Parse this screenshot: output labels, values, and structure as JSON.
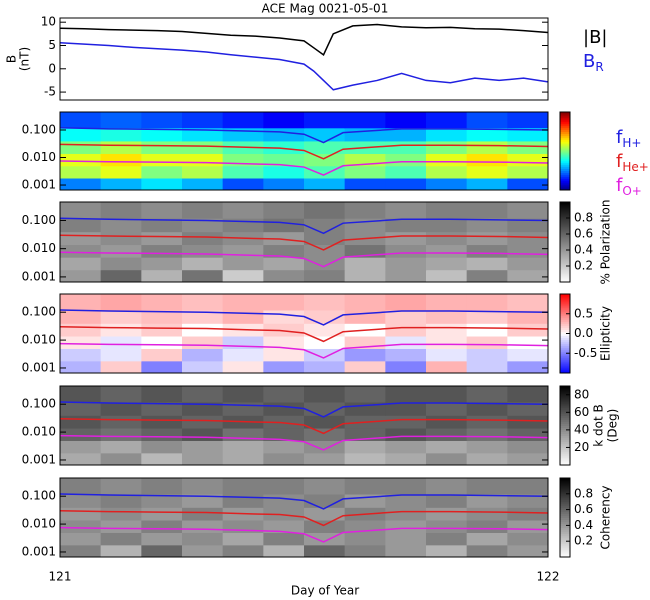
{
  "chart_data": [
    {
      "type": "line",
      "title": "ACE Mag 0021-05-01",
      "ylabel": [
        "B",
        "(nT)"
      ],
      "xlim": [
        121,
        122
      ],
      "ylim": [
        -6.7,
        10.9
      ],
      "yticks": [
        -5,
        0,
        5,
        10
      ],
      "x": [
        121,
        121.05,
        121.1,
        121.15,
        121.2,
        121.25,
        121.3,
        121.35,
        121.4,
        121.45,
        121.5,
        121.52,
        121.54,
        121.56,
        121.6,
        121.65,
        121.7,
        121.75,
        121.8,
        121.85,
        121.9,
        121.95,
        122
      ],
      "series": [
        {
          "name": "|B|",
          "color": "#000000",
          "values": [
            8.7,
            8.6,
            8.4,
            8.3,
            8.2,
            8.0,
            7.6,
            7.2,
            7.0,
            6.6,
            6.0,
            4.5,
            3.0,
            7.5,
            9.2,
            9.5,
            9.0,
            8.8,
            8.9,
            8.6,
            8.5,
            8.2,
            7.8
          ]
        },
        {
          "name": "B",
          "subscript": "R",
          "color": "#2020e0",
          "values": [
            5.6,
            5.3,
            5.0,
            4.6,
            4.3,
            4.0,
            3.6,
            3.0,
            2.5,
            2.0,
            1.0,
            -0.5,
            -2.5,
            -4.5,
            -3.5,
            -2.5,
            -1.0,
            -2.5,
            -3.0,
            -2.0,
            -2.5,
            -2.0,
            -2.8
          ]
        }
      ]
    },
    {
      "type": "heatmap",
      "ylog": true,
      "colormap": "jet",
      "clim": [
        0,
        1
      ],
      "xlim": [
        121,
        122
      ],
      "ylim": [
        0.00066,
        0.45
      ],
      "yticks": [
        0.001,
        {
          "value": 0.01,
          "label": "0.010"
        },
        {
          "value": 0.1,
          "label": "0.100"
        }
      ],
      "xbins": [
        121,
        121.0833,
        121.1667,
        121.25,
        121.3333,
        121.4167,
        121.5,
        121.5833,
        121.6667,
        121.75,
        121.8333,
        121.9167,
        122
      ],
      "ybins": [
        0.00066,
        0.0018,
        0.005,
        0.014,
        0.04,
        0.12,
        0.45
      ],
      "z": [
        [
          0.25,
          0.3,
          0.35,
          0.3,
          0.2,
          0.25,
          0.3,
          0.2,
          0.2,
          0.25,
          0.3,
          0.2
        ],
        [
          0.55,
          0.6,
          0.5,
          0.55,
          0.45,
          0.4,
          0.45,
          0.5,
          0.45,
          0.55,
          0.6,
          0.55
        ],
        [
          0.6,
          0.65,
          0.6,
          0.6,
          0.5,
          0.48,
          0.5,
          0.55,
          0.5,
          0.6,
          0.65,
          0.6
        ],
        [
          0.5,
          0.55,
          0.5,
          0.5,
          0.45,
          0.42,
          0.45,
          0.45,
          0.45,
          0.5,
          0.55,
          0.5
        ],
        [
          0.38,
          0.4,
          0.38,
          0.35,
          0.32,
          0.3,
          0.32,
          0.3,
          0.3,
          0.35,
          0.38,
          0.36
        ],
        [
          0.2,
          0.22,
          0.2,
          0.18,
          0.15,
          0.12,
          0.15,
          0.15,
          0.12,
          0.15,
          0.2,
          0.18
        ]
      ],
      "x": [
        121,
        121.1,
        121.2,
        121.3,
        121.4,
        121.45,
        121.5,
        121.54,
        121.58,
        121.7,
        121.8,
        121.9,
        122
      ],
      "series": [
        {
          "name": "f",
          "subscript": "H+",
          "color": "#2020e0",
          "values": [
            0.12,
            0.11,
            0.105,
            0.1,
            0.09,
            0.085,
            0.07,
            0.035,
            0.08,
            0.11,
            0.11,
            0.105,
            0.1
          ]
        },
        {
          "name": "f",
          "subscript": "He+",
          "color": "#e02020",
          "values": [
            0.03,
            0.028,
            0.027,
            0.026,
            0.023,
            0.022,
            0.018,
            0.009,
            0.02,
            0.028,
            0.028,
            0.027,
            0.025
          ]
        },
        {
          "name": "f",
          "subscript": "O+",
          "color": "#e020e0",
          "values": [
            0.0075,
            0.007,
            0.0068,
            0.0065,
            0.0058,
            0.0055,
            0.0045,
            0.0023,
            0.005,
            0.007,
            0.007,
            0.0068,
            0.0063
          ]
        }
      ]
    },
    {
      "type": "heatmap",
      "ylog": true,
      "colormap": "gray_r",
      "clim": [
        0,
        1
      ],
      "cbticks": [
        0.2,
        0.4,
        0.6,
        0.8
      ],
      "cblabel": [
        "% Polarization"
      ],
      "xlim": [
        121,
        122
      ],
      "ylim": [
        0.00066,
        0.45
      ],
      "yticks": [
        0.001,
        {
          "value": 0.01,
          "label": "0.010"
        },
        {
          "value": 0.1,
          "label": "0.100"
        }
      ],
      "xbins": [
        121,
        121.0833,
        121.1667,
        121.25,
        121.3333,
        121.4167,
        121.5,
        121.5833,
        121.6667,
        121.75,
        121.8333,
        121.9167,
        122
      ],
      "ybins": [
        0.00066,
        0.0018,
        0.005,
        0.014,
        0.04,
        0.12,
        0.45
      ],
      "z": [
        [
          0.4,
          0.6,
          0.3,
          0.55,
          0.2,
          0.45,
          0.5,
          0.3,
          0.4,
          0.25,
          0.5,
          0.35
        ],
        [
          0.35,
          0.45,
          0.4,
          0.3,
          0.4,
          0.35,
          0.45,
          0.3,
          0.4,
          0.35,
          0.3,
          0.4
        ],
        [
          0.45,
          0.4,
          0.5,
          0.45,
          0.4,
          0.5,
          0.45,
          0.55,
          0.45,
          0.4,
          0.5,
          0.45
        ],
        [
          0.4,
          0.45,
          0.4,
          0.5,
          0.45,
          0.4,
          0.5,
          0.45,
          0.4,
          0.45,
          0.4,
          0.45
        ],
        [
          0.5,
          0.45,
          0.5,
          0.45,
          0.5,
          0.55,
          0.5,
          0.45,
          0.5,
          0.5,
          0.45,
          0.5
        ],
        [
          0.45,
          0.5,
          0.45,
          0.5,
          0.45,
          0.5,
          0.55,
          0.5,
          0.45,
          0.5,
          0.5,
          0.45
        ]
      ],
      "x": [
        121,
        121.1,
        121.2,
        121.3,
        121.4,
        121.45,
        121.5,
        121.54,
        121.58,
        121.7,
        121.8,
        121.9,
        122
      ],
      "series": [
        {
          "color": "#2020e0",
          "values": [
            0.12,
            0.11,
            0.105,
            0.1,
            0.09,
            0.085,
            0.07,
            0.035,
            0.08,
            0.11,
            0.11,
            0.105,
            0.1
          ]
        },
        {
          "color": "#e02020",
          "values": [
            0.03,
            0.028,
            0.027,
            0.026,
            0.023,
            0.022,
            0.018,
            0.009,
            0.02,
            0.028,
            0.028,
            0.027,
            0.025
          ]
        },
        {
          "color": "#e020e0",
          "values": [
            0.0075,
            0.007,
            0.0068,
            0.0065,
            0.0058,
            0.0055,
            0.0045,
            0.0023,
            0.005,
            0.007,
            0.007,
            0.0068,
            0.0063
          ]
        }
      ]
    },
    {
      "type": "heatmap",
      "ylog": true,
      "colormap": "bwr",
      "clim": [
        -1,
        1
      ],
      "cbticks": [
        -0.5,
        {
          "value": 0,
          "label": "0.0"
        },
        0.5
      ],
      "cblabel": [
        "Ellipticity"
      ],
      "xlim": [
        121,
        122
      ],
      "ylim": [
        0.00066,
        0.45
      ],
      "yticks": [
        0.001,
        {
          "value": 0.01,
          "label": "0.010"
        },
        {
          "value": 0.1,
          "label": "0.100"
        }
      ],
      "xbins": [
        121,
        121.0833,
        121.1667,
        121.25,
        121.3333,
        121.4167,
        121.5,
        121.5833,
        121.6667,
        121.75,
        121.8333,
        121.9167,
        122
      ],
      "ybins": [
        0.00066,
        0.0018,
        0.005,
        0.014,
        0.04,
        0.12,
        0.45
      ],
      "z": [
        [
          -0.3,
          0.2,
          -0.5,
          -0.2,
          0.1,
          -0.4,
          -0.3,
          0.2,
          -0.5,
          0.3,
          -0.2,
          -0.4
        ],
        [
          -0.2,
          -0.1,
          0.2,
          -0.3,
          -0.1,
          0.1,
          -0.2,
          -0.4,
          -0.3,
          -0.1,
          -0.2,
          -0.1
        ],
        [
          0.1,
          -0.1,
          0.0,
          0.2,
          -0.2,
          0.1,
          0.0,
          0.2,
          -0.1,
          0.1,
          0.2,
          0.0
        ],
        [
          0.2,
          0.1,
          0.2,
          0.0,
          0.1,
          0.2,
          0.1,
          0.0,
          0.2,
          0.1,
          0.0,
          0.2
        ],
        [
          0.3,
          0.2,
          0.25,
          0.2,
          0.3,
          0.15,
          0.2,
          0.3,
          0.2,
          0.25,
          0.2,
          0.3
        ],
        [
          0.3,
          0.35,
          0.3,
          0.25,
          0.3,
          0.3,
          0.25,
          0.3,
          0.35,
          0.3,
          0.3,
          0.25
        ]
      ],
      "x": [
        121,
        121.1,
        121.2,
        121.3,
        121.4,
        121.45,
        121.5,
        121.54,
        121.58,
        121.7,
        121.8,
        121.9,
        122
      ],
      "series": [
        {
          "color": "#2020e0",
          "values": [
            0.12,
            0.11,
            0.105,
            0.1,
            0.09,
            0.085,
            0.07,
            0.035,
            0.08,
            0.11,
            0.11,
            0.105,
            0.1
          ]
        },
        {
          "color": "#e02020",
          "values": [
            0.03,
            0.028,
            0.027,
            0.026,
            0.023,
            0.022,
            0.018,
            0.009,
            0.02,
            0.028,
            0.028,
            0.027,
            0.025
          ]
        },
        {
          "color": "#e020e0",
          "values": [
            0.0075,
            0.007,
            0.0068,
            0.0065,
            0.0058,
            0.0055,
            0.0045,
            0.0023,
            0.005,
            0.007,
            0.007,
            0.0068,
            0.0063
          ]
        }
      ]
    },
    {
      "type": "heatmap",
      "ylog": true,
      "colormap": "gray_r",
      "clim": [
        0,
        90
      ],
      "cbticks": [
        20,
        40,
        60,
        80
      ],
      "cblabel": [
        "k dot B",
        "(Deg)"
      ],
      "xlim": [
        121,
        122
      ],
      "ylim": [
        0.00066,
        0.45
      ],
      "yticks": [
        0.001,
        {
          "value": 0.01,
          "label": "0.010"
        },
        {
          "value": 0.1,
          "label": "0.100"
        }
      ],
      "xbins": [
        121,
        121.0833,
        121.1667,
        121.25,
        121.3333,
        121.4167,
        121.5,
        121.5833,
        121.6667,
        121.75,
        121.8333,
        121.9167,
        122
      ],
      "ybins": [
        0.00066,
        0.0018,
        0.005,
        0.014,
        0.04,
        0.12,
        0.45
      ],
      "z": [
        [
          30,
          40,
          25,
          35,
          30,
          40,
          35,
          25,
          30,
          40,
          30,
          35
        ],
        [
          35,
          30,
          40,
          35,
          30,
          35,
          40,
          30,
          35,
          30,
          35,
          40
        ],
        [
          55,
          50,
          55,
          60,
          50,
          55,
          50,
          55,
          60,
          55,
          50,
          55
        ],
        [
          60,
          55,
          60,
          55,
          60,
          55,
          60,
          55,
          55,
          60,
          55,
          60
        ],
        [
          55,
          60,
          55,
          60,
          55,
          60,
          55,
          60,
          60,
          55,
          60,
          55
        ],
        [
          60,
          55,
          60,
          55,
          60,
          55,
          60,
          55,
          60,
          60,
          55,
          60
        ]
      ],
      "x": [
        121,
        121.1,
        121.2,
        121.3,
        121.4,
        121.45,
        121.5,
        121.54,
        121.58,
        121.7,
        121.8,
        121.9,
        122
      ],
      "series": [
        {
          "color": "#2020e0",
          "values": [
            0.12,
            0.11,
            0.105,
            0.1,
            0.09,
            0.085,
            0.07,
            0.035,
            0.08,
            0.11,
            0.11,
            0.105,
            0.1
          ]
        },
        {
          "color": "#e02020",
          "values": [
            0.03,
            0.028,
            0.027,
            0.026,
            0.023,
            0.022,
            0.018,
            0.009,
            0.02,
            0.028,
            0.028,
            0.027,
            0.025
          ]
        },
        {
          "color": "#e020e0",
          "values": [
            0.0075,
            0.007,
            0.0068,
            0.0065,
            0.0058,
            0.0055,
            0.0045,
            0.0023,
            0.005,
            0.007,
            0.007,
            0.0068,
            0.0063
          ]
        }
      ]
    },
    {
      "type": "heatmap",
      "ylog": true,
      "colormap": "gray_r",
      "clim": [
        0,
        1
      ],
      "cbticks": [
        0.2,
        0.4,
        0.6,
        0.8
      ],
      "cblabel": [
        "Coherency"
      ],
      "xlabel": "Day of Year",
      "xticks": [
        121,
        122
      ],
      "xlim": [
        121,
        122
      ],
      "ylim": [
        0.00066,
        0.45
      ],
      "yticks": [
        0.001,
        {
          "value": 0.01,
          "label": "0.010"
        },
        {
          "value": 0.1,
          "label": "0.100"
        }
      ],
      "xbins": [
        121,
        121.0833,
        121.1667,
        121.25,
        121.3333,
        121.4167,
        121.5,
        121.5833,
        121.6667,
        121.75,
        121.8333,
        121.9167,
        122
      ],
      "ybins": [
        0.00066,
        0.0018,
        0.005,
        0.014,
        0.04,
        0.12,
        0.45
      ],
      "z": [
        [
          0.5,
          0.3,
          0.6,
          0.4,
          0.5,
          0.3,
          0.6,
          0.5,
          0.4,
          0.3,
          0.5,
          0.4
        ],
        [
          0.4,
          0.5,
          0.4,
          0.45,
          0.35,
          0.5,
          0.4,
          0.45,
          0.4,
          0.5,
          0.35,
          0.45
        ],
        [
          0.45,
          0.4,
          0.5,
          0.4,
          0.45,
          0.4,
          0.5,
          0.45,
          0.4,
          0.45,
          0.5,
          0.4
        ],
        [
          0.4,
          0.45,
          0.4,
          0.5,
          0.4,
          0.45,
          0.4,
          0.5,
          0.45,
          0.4,
          0.45,
          0.5
        ],
        [
          0.45,
          0.5,
          0.45,
          0.4,
          0.5,
          0.45,
          0.5,
          0.4,
          0.45,
          0.5,
          0.4,
          0.45
        ],
        [
          0.5,
          0.45,
          0.5,
          0.45,
          0.5,
          0.5,
          0.45,
          0.5,
          0.5,
          0.45,
          0.5,
          0.5
        ]
      ],
      "x": [
        121,
        121.1,
        121.2,
        121.3,
        121.4,
        121.45,
        121.5,
        121.54,
        121.58,
        121.7,
        121.8,
        121.9,
        122
      ],
      "series": [
        {
          "color": "#2020e0",
          "values": [
            0.12,
            0.11,
            0.105,
            0.1,
            0.09,
            0.085,
            0.07,
            0.035,
            0.08,
            0.11,
            0.11,
            0.105,
            0.1
          ]
        },
        {
          "color": "#e02020",
          "values": [
            0.03,
            0.028,
            0.027,
            0.026,
            0.023,
            0.022,
            0.018,
            0.009,
            0.02,
            0.028,
            0.028,
            0.027,
            0.025
          ]
        },
        {
          "color": "#e020e0",
          "values": [
            0.0075,
            0.007,
            0.0068,
            0.0065,
            0.0058,
            0.0055,
            0.0045,
            0.0023,
            0.005,
            0.007,
            0.007,
            0.0068,
            0.0063
          ]
        }
      ]
    }
  ]
}
